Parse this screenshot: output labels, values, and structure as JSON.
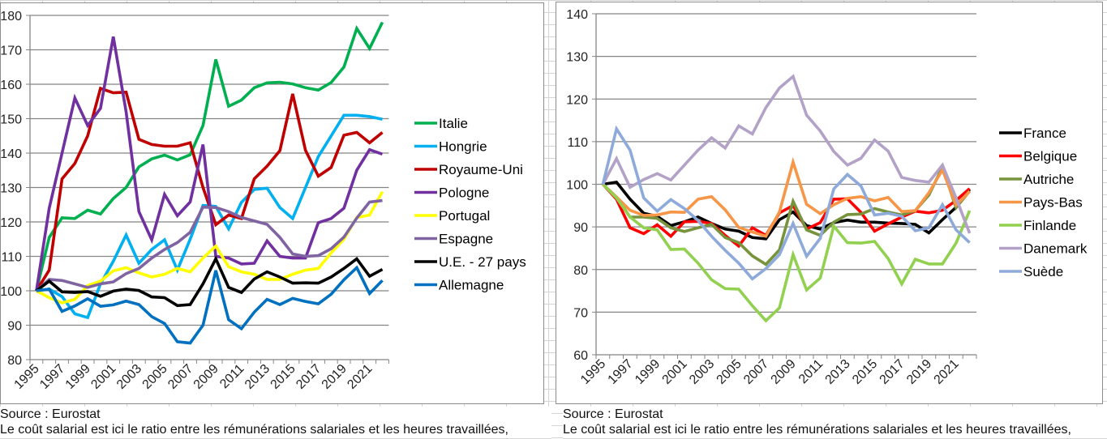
{
  "chart_data": [
    {
      "type": "line",
      "title": "",
      "xlabel": "",
      "ylabel": "",
      "ylim": [
        80,
        180
      ],
      "yticks": [
        80,
        90,
        100,
        110,
        120,
        130,
        140,
        150,
        160,
        170,
        180
      ],
      "x": [
        1995,
        1996,
        1997,
        1998,
        1999,
        2000,
        2001,
        2002,
        2003,
        2004,
        2005,
        2006,
        2007,
        2008,
        2009,
        2010,
        2011,
        2012,
        2013,
        2014,
        2015,
        2016,
        2017,
        2018,
        2019,
        2020,
        2021,
        2022
      ],
      "xtick_labels": [
        "1995",
        "1997",
        "1999",
        "2001",
        "2003",
        "2005",
        "2007",
        "2009",
        "2011",
        "2013",
        "2015",
        "2017",
        "2019",
        "2021"
      ],
      "grid": true,
      "legend_position": "right",
      "series": [
        {
          "name": "Italie",
          "color": "#00b050",
          "values": [
            100,
            115.5,
            121.2,
            121,
            123.4,
            122.3,
            126.8,
            130,
            136,
            138.3,
            139.4,
            138,
            139.5,
            148,
            167.2,
            153.6,
            155.4,
            159,
            160.4,
            160.6,
            160.1,
            159,
            158.3,
            160.5,
            165,
            176.2,
            170.4,
            178
          ]
        },
        {
          "name": "Hongrie",
          "color": "#00b0f0",
          "values": [
            100,
            100.5,
            98.3,
            93.3,
            92.2,
            102,
            108.6,
            116.2,
            108,
            112,
            114.8,
            106,
            115,
            124.8,
            124.5,
            118,
            125.7,
            129.4,
            129.8,
            124.2,
            121,
            130,
            139,
            145,
            151,
            151,
            150.6,
            149.8
          ]
        },
        {
          "name": "Royaume-Uni",
          "color": "#c00000",
          "values": [
            100,
            106,
            132.5,
            137,
            145,
            158.8,
            157.5,
            157.7,
            144,
            142.5,
            142,
            142,
            143,
            130,
            119.2,
            122,
            121,
            132.5,
            136.2,
            140.7,
            157.2,
            140.8,
            133.3,
            135.8,
            145.2,
            146,
            143,
            146
          ]
        },
        {
          "name": "Pologne",
          "color": "#7030a0",
          "values": [
            100,
            124,
            140,
            156,
            148,
            153,
            173.8,
            152,
            123,
            114.8,
            128,
            121.8,
            125.8,
            142.5,
            110,
            109.5,
            107.8,
            108,
            114.5,
            110,
            109.5,
            109.5,
            119.8,
            121,
            124,
            135,
            141,
            139.7
          ]
        },
        {
          "name": "Portugal",
          "color": "#ffff00",
          "values": [
            100,
            98,
            96.5,
            97.5,
            101.5,
            102.8,
            105.8,
            106.7,
            105.2,
            104,
            104.8,
            106.5,
            105.5,
            109.5,
            113,
            107,
            105.5,
            104.8,
            103.3,
            103.3,
            104.8,
            106,
            106.5,
            111,
            115,
            121.3,
            122,
            128.8
          ]
        },
        {
          "name": "Espagne",
          "color": "#8064a2",
          "values": [
            100,
            103.3,
            103,
            102,
            101,
            102,
            102.6,
            105,
            106.5,
            109.5,
            112,
            114,
            117,
            124.3,
            124.2,
            123,
            121.3,
            120.3,
            119.3,
            115.5,
            110.7,
            110,
            110.2,
            112.2,
            115.6,
            121.1,
            125.8,
            126.2
          ]
        },
        {
          "name": "U.E. - 27 pays",
          "color": "#000000",
          "values": [
            100,
            102.8,
            99.7,
            99.5,
            99.8,
            98.4,
            99.9,
            100.5,
            100.1,
            98.2,
            98,
            95.7,
            96,
            102,
            109.3,
            101,
            99.5,
            103.4,
            105.5,
            104,
            102.2,
            102.3,
            102.2,
            104,
            106.5,
            109.3,
            104.2,
            106.2
          ]
        },
        {
          "name": "Allemagne",
          "color": "#0070c0",
          "values": [
            100,
            100.5,
            94,
            95.6,
            97.7,
            95.5,
            95.9,
            97,
            96,
            92.5,
            90.5,
            85.2,
            84.8,
            90,
            105.9,
            91.6,
            89,
            93.8,
            97.5,
            96,
            97.8,
            96.9,
            96.2,
            99,
            103.2,
            106.7,
            99.2,
            103
          ]
        }
      ]
    },
    {
      "type": "line",
      "title": "",
      "xlabel": "",
      "ylabel": "",
      "ylim": [
        60,
        140
      ],
      "yticks": [
        60,
        70,
        80,
        90,
        100,
        110,
        120,
        130,
        140
      ],
      "x": [
        1995,
        1996,
        1997,
        1998,
        1999,
        2000,
        2001,
        2002,
        2003,
        2004,
        2005,
        2006,
        2007,
        2008,
        2009,
        2010,
        2011,
        2012,
        2013,
        2014,
        2015,
        2016,
        2017,
        2018,
        2019,
        2020,
        2021,
        2022
      ],
      "xtick_labels": [
        "1995",
        "1997",
        "1999",
        "2001",
        "2003",
        "2005",
        "2007",
        "2009",
        "2011",
        "2013",
        "2015",
        "2017",
        "2019",
        "2021"
      ],
      "grid": true,
      "legend_position": "right",
      "series": [
        {
          "name": "France",
          "color": "#000000",
          "values": [
            100,
            100.5,
            96.5,
            93.2,
            92.5,
            90.3,
            91.2,
            92.3,
            90.8,
            89.5,
            89,
            87.5,
            87.2,
            91.7,
            93.5,
            90.3,
            89.5,
            91,
            91.6,
            91.1,
            91.1,
            90.9,
            90.8,
            90.6,
            88.6,
            91.7,
            94.6,
            98.8
          ]
        },
        {
          "name": "Belgique",
          "color": "#ff0000",
          "values": [
            100,
            96.5,
            89.8,
            88.4,
            90.5,
            87.8,
            91.2,
            91.3,
            90.8,
            88,
            85.5,
            89.8,
            88,
            93.3,
            95,
            89.5,
            91,
            96.5,
            96.6,
            93.4,
            89,
            90.7,
            92.3,
            93.7,
            93.3,
            93.9,
            96.2,
            99
          ]
        },
        {
          "name": "Autriche",
          "color": "#77933c",
          "values": [
            100,
            97,
            92.3,
            92.3,
            92,
            89.8,
            88.9,
            89.8,
            90.6,
            87.5,
            86.3,
            83.2,
            81.2,
            84.6,
            96,
            89.3,
            88,
            91.1,
            92.9,
            93,
            94.3,
            93.5,
            92.8,
            93.8,
            97.5,
            104,
            94.5,
            98.4
          ]
        },
        {
          "name": "Pays-Bas",
          "color": "#f79646",
          "values": [
            100,
            97,
            93.9,
            92.7,
            92.8,
            93.5,
            93.4,
            96.5,
            97.1,
            94,
            89.9,
            88.8,
            87.8,
            93.5,
            105.2,
            95.3,
            93.1,
            95.2,
            96.7,
            97.1,
            96.1,
            96.9,
            93.6,
            93.8,
            98,
            103.4,
            95.1,
            98.3
          ]
        },
        {
          "name": "Finlande",
          "color": "#92d050",
          "values": [
            100,
            96.8,
            92.3,
            89.8,
            89.3,
            84.7,
            84.8,
            81.5,
            77.6,
            75.5,
            75.4,
            71.5,
            68,
            71,
            83.5,
            75.2,
            78,
            90.2,
            86.3,
            86.2,
            86.6,
            82.6,
            76.6,
            82.4,
            81.3,
            81.3,
            86.2,
            93.8
          ]
        },
        {
          "name": "Danemark",
          "color": "#b3a2c7",
          "values": [
            100,
            106,
            99.3,
            101.1,
            102.5,
            101,
            104.5,
            108,
            110.9,
            108.5,
            113.7,
            111.8,
            118,
            122.6,
            125.3,
            116.2,
            112.5,
            107.7,
            104.5,
            106.1,
            110.4,
            107.8,
            101.6,
            100.9,
            100.5,
            104.5,
            96.8,
            88.5
          ]
        },
        {
          "name": "Suède",
          "color": "#8eaadb",
          "values": [
            100,
            113,
            108,
            96.8,
            93.7,
            96.4,
            94.3,
            91.5,
            87.8,
            84.5,
            81.5,
            77.8,
            80.2,
            83.5,
            90.8,
            83.1,
            87.3,
            98.9,
            102.3,
            99.6,
            92.8,
            93.2,
            92.5,
            89.1,
            89.8,
            95.2,
            89.3,
            86.3
          ]
        }
      ]
    }
  ],
  "notes": {
    "left": {
      "source": "Source : Eurostat",
      "definition": "Le coût salarial est ici le ratio entre les rémunérations salariales et les heures travaillées,"
    },
    "right": {
      "source": "Source : Eurostat",
      "definition": "Le coût salarial est ici le ratio entre les rémunérations salariales et les heures travaillées,"
    }
  }
}
